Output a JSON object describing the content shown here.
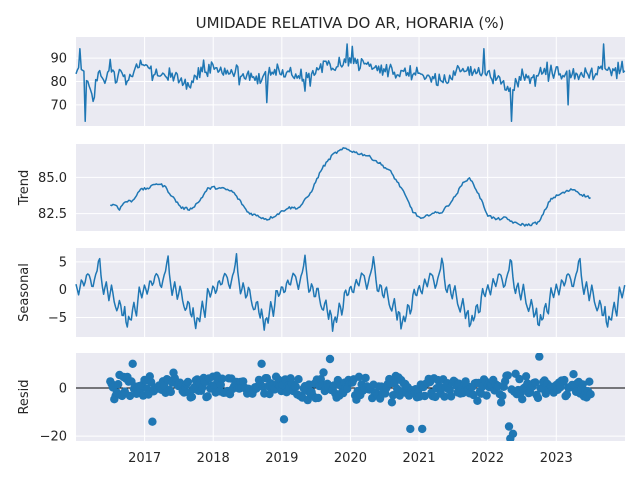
{
  "chart_data": {
    "type": "line",
    "title": "UMIDADE RELATIVA DO AR, HORARIA (%)",
    "x_axis": {
      "unit": "date",
      "range": [
        "2016-01-01",
        "2023-12-31"
      ],
      "ticks": [
        "2017",
        "2018",
        "2019",
        "2020",
        "2021",
        "2022",
        "2023"
      ]
    },
    "grid": true,
    "line_color": "#1f77b4",
    "panels": [
      {
        "name": "observed",
        "ylabel": "",
        "type": "line",
        "ylim": [
          61,
          99
        ],
        "yticks": [
          "70",
          "80",
          "90"
        ],
        "anchors": [
          [
            "2016-01",
            83
          ],
          [
            "2016-02",
            86
          ],
          [
            "2016-03",
            79
          ],
          [
            "2016-04",
            74
          ],
          [
            "2016-05",
            85
          ],
          [
            "2016-06",
            80
          ],
          [
            "2016-07",
            88
          ],
          [
            "2016-08",
            81
          ],
          [
            "2016-09",
            86
          ],
          [
            "2016-10",
            80
          ],
          [
            "2016-11",
            84
          ],
          [
            "2016-12",
            87
          ],
          [
            "2017-01",
            86
          ],
          [
            "2017-03",
            84
          ],
          [
            "2017-05",
            82
          ],
          [
            "2017-07",
            83
          ],
          [
            "2017-09",
            80
          ],
          [
            "2017-11",
            85
          ],
          [
            "2018-01",
            87
          ],
          [
            "2018-03",
            85
          ],
          [
            "2018-05",
            84
          ],
          [
            "2018-07",
            82
          ],
          [
            "2018-09",
            81
          ],
          [
            "2018-11",
            84
          ],
          [
            "2019-01",
            85
          ],
          [
            "2019-03",
            84
          ],
          [
            "2019-05",
            82
          ],
          [
            "2019-07",
            85
          ],
          [
            "2019-09",
            88
          ],
          [
            "2019-11",
            87
          ],
          [
            "2020-01",
            89
          ],
          [
            "2020-03",
            88
          ],
          [
            "2020-05",
            87
          ],
          [
            "2020-07",
            86
          ],
          [
            "2020-09",
            83
          ],
          [
            "2020-11",
            84
          ],
          [
            "2021-01",
            85
          ],
          [
            "2021-03",
            82
          ],
          [
            "2021-05",
            81
          ],
          [
            "2021-07",
            83
          ],
          [
            "2021-09",
            86
          ],
          [
            "2021-11",
            84
          ],
          [
            "2022-01",
            83
          ],
          [
            "2022-03",
            81
          ],
          [
            "2022-05",
            77
          ],
          [
            "2022-07",
            83
          ],
          [
            "2022-09",
            82
          ],
          [
            "2022-11",
            84
          ],
          [
            "2023-01",
            85
          ],
          [
            "2023-03",
            84
          ],
          [
            "2023-05",
            83
          ],
          [
            "2023-07",
            84
          ],
          [
            "2023-09",
            85
          ],
          [
            "2023-11",
            84
          ],
          [
            "2023-12",
            86
          ]
        ],
        "extremes": [
          [
            "2016-02-20",
            63
          ],
          [
            "2016-01-25",
            94
          ],
          [
            "2020-01-10",
            95
          ],
          [
            "2022-05-05",
            63
          ],
          [
            "2021-12-10",
            94
          ],
          [
            "2023-09-10",
            96
          ],
          [
            "2019-12-10",
            96
          ],
          [
            "2018-10-15",
            71
          ],
          [
            "2023-03-01",
            70
          ]
        ]
      },
      {
        "name": "trend",
        "ylabel": "Trend",
        "type": "line",
        "ylim": [
          81.3,
          87.3
        ],
        "yticks": [
          "82.5",
          "85.0"
        ],
        "points": [
          [
            "2016-07-01",
            83.1
          ],
          [
            "2016-08-01",
            83.1
          ],
          [
            "2016-08-20",
            82.8
          ],
          [
            "2016-09-15",
            83.3
          ],
          [
            "2016-11-01",
            83.4
          ],
          [
            "2016-12-01",
            84.1
          ],
          [
            "2017-02-01",
            84.3
          ],
          [
            "2017-03-01",
            84.6
          ],
          [
            "2017-04-15",
            84.4
          ],
          [
            "2017-06-01",
            83.6
          ],
          [
            "2017-07-15",
            82.9
          ],
          [
            "2017-09-01",
            82.8
          ],
          [
            "2017-10-15",
            83.3
          ],
          [
            "2017-12-01",
            84.2
          ],
          [
            "2018-01-01",
            84.3
          ],
          [
            "2018-03-01",
            84.2
          ],
          [
            "2018-04-15",
            84.0
          ],
          [
            "2018-06-01",
            83.2
          ],
          [
            "2018-07-01",
            82.6
          ],
          [
            "2018-09-01",
            82.3
          ],
          [
            "2018-10-15",
            82.1
          ],
          [
            "2018-12-01",
            82.4
          ],
          [
            "2019-02-01",
            82.9
          ],
          [
            "2019-04-01",
            82.9
          ],
          [
            "2019-06-01",
            83.9
          ],
          [
            "2019-08-01",
            85.6
          ],
          [
            "2019-10-01",
            86.6
          ],
          [
            "2019-12-01",
            87.0
          ],
          [
            "2020-02-01",
            86.7
          ],
          [
            "2020-04-01",
            86.5
          ],
          [
            "2020-06-01",
            86.0
          ],
          [
            "2020-08-01",
            85.4
          ],
          [
            "2020-10-01",
            84.2
          ],
          [
            "2020-12-01",
            82.6
          ],
          [
            "2021-01-15",
            82.1
          ],
          [
            "2021-03-01",
            82.5
          ],
          [
            "2021-05-01",
            82.6
          ],
          [
            "2021-07-01",
            83.5
          ],
          [
            "2021-09-01",
            84.8
          ],
          [
            "2021-10-01",
            84.9
          ],
          [
            "2021-11-15",
            83.8
          ],
          [
            "2022-01-01",
            82.4
          ],
          [
            "2022-02-15",
            82.1
          ],
          [
            "2022-04-01",
            82.2
          ],
          [
            "2022-06-01",
            81.8
          ],
          [
            "2022-08-01",
            81.7
          ],
          [
            "2022-10-01",
            81.9
          ],
          [
            "2022-12-01",
            83.5
          ],
          [
            "2023-02-01",
            83.9
          ],
          [
            "2023-04-01",
            84.2
          ],
          [
            "2023-05-15",
            83.8
          ],
          [
            "2023-07-01",
            83.6
          ]
        ]
      },
      {
        "name": "seasonal",
        "ylabel": "Seasonal",
        "type": "line",
        "ylim": [
          -8.5,
          7.5
        ],
        "yticks": [
          "−5",
          "0",
          "5"
        ],
        "cycle": [
          [
            0,
            1.0
          ],
          [
            0.04,
            -1.0
          ],
          [
            0.08,
            2.0
          ],
          [
            0.12,
            0.5
          ],
          [
            0.16,
            3.0
          ],
          [
            0.2,
            2.5
          ],
          [
            0.24,
            0.0
          ],
          [
            0.28,
            2.5
          ],
          [
            0.31,
            3.5
          ],
          [
            0.34,
            6.5
          ],
          [
            0.36,
            3.0
          ],
          [
            0.4,
            -1.0
          ],
          [
            0.44,
            1.5
          ],
          [
            0.48,
            -2.0
          ],
          [
            0.52,
            1.0
          ],
          [
            0.56,
            -2.5
          ],
          [
            0.6,
            -4.0
          ],
          [
            0.64,
            -1.5
          ],
          [
            0.68,
            -5.5
          ],
          [
            0.71,
            -3.0
          ],
          [
            0.74,
            -7.5
          ],
          [
            0.77,
            -4.5
          ],
          [
            0.8,
            -6.0
          ],
          [
            0.84,
            -2.0
          ],
          [
            0.88,
            -5.0
          ],
          [
            0.92,
            0.5
          ],
          [
            0.96,
            -1.5
          ],
          [
            1.0,
            1.0
          ]
        ]
      },
      {
        "name": "resid",
        "ylabel": "Resid",
        "type": "scatter",
        "ylim": [
          -22,
          14.5
        ],
        "yticks": [
          "−20",
          "0"
        ],
        "zero_line": true,
        "date_range": [
          "2016-07-01",
          "2023-07-01"
        ],
        "notable_points": [
          [
            "2022-05-01",
            -21
          ],
          [
            "2022-05-15",
            -19
          ],
          [
            "2022-04-20",
            -16
          ],
          [
            "2020-11-15",
            -17
          ],
          [
            "2021-01-20",
            -17
          ],
          [
            "2019-01-10",
            -13
          ],
          [
            "2017-02-15",
            -14
          ],
          [
            "2022-10-01",
            13
          ],
          [
            "2019-09-15",
            12
          ],
          [
            "2016-11-01",
            10
          ],
          [
            "2018-09-15",
            10
          ]
        ]
      }
    ]
  }
}
